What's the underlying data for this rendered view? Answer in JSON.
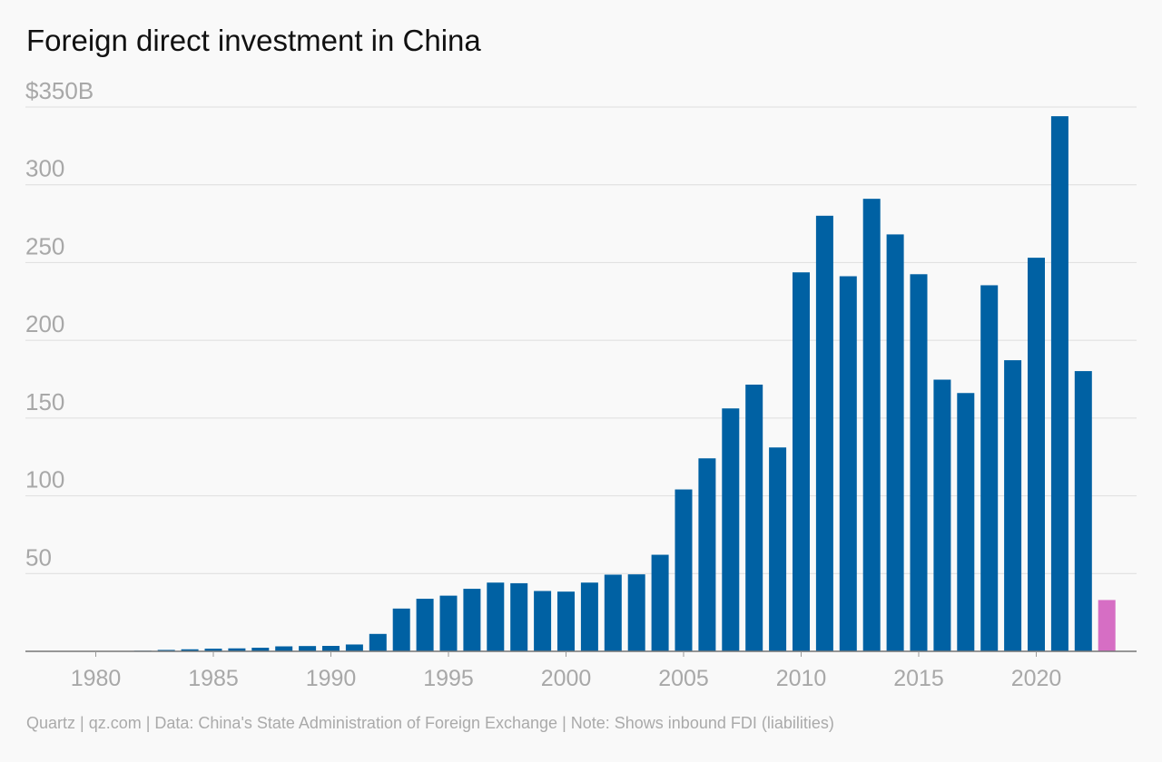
{
  "chart_data": {
    "type": "bar",
    "title": "Foreign direct investment in China",
    "ylabel_prefix": "$",
    "ylabel_suffix": "B",
    "ylim": [
      0,
      350
    ],
    "yticks": [
      50,
      100,
      150,
      200,
      250,
      300,
      350
    ],
    "ytick_labels": [
      "50",
      "100",
      "150",
      "200",
      "250",
      "300",
      "$350B"
    ],
    "xticks": [
      1980,
      1985,
      1990,
      1995,
      2000,
      2005,
      2010,
      2015,
      2020
    ],
    "xtick_labels": [
      "1980",
      "1985",
      "1990",
      "1995",
      "2000",
      "2005",
      "2010",
      "2015",
      "2020"
    ],
    "grid": true,
    "series_color": "#0061a3",
    "highlight_color": "#d66ec4",
    "x": [
      1982,
      1983,
      1984,
      1985,
      1986,
      1987,
      1988,
      1989,
      1990,
      1991,
      1992,
      1993,
      1994,
      1995,
      1996,
      1997,
      1998,
      1999,
      2000,
      2001,
      2002,
      2003,
      2004,
      2005,
      2006,
      2007,
      2008,
      2009,
      2010,
      2011,
      2012,
      2013,
      2014,
      2015,
      2016,
      2017,
      2018,
      2019,
      2020,
      2021,
      2022,
      2023
    ],
    "values": [
      0.4,
      0.9,
      1.3,
      1.7,
      1.9,
      2.3,
      3.2,
      3.4,
      3.5,
      4.4,
      11.2,
      27.5,
      33.8,
      35.8,
      40.2,
      44.2,
      43.8,
      38.8,
      38.4,
      44.2,
      49.3,
      49.5,
      62.1,
      104.1,
      124.1,
      156.2,
      171.5,
      131.1,
      243.7,
      280.1,
      241.2,
      291.0,
      268.1,
      242.5,
      174.7,
      166.1,
      235.4,
      187.2,
      253.1,
      344.1,
      180.2,
      33.0
    ],
    "highlight": [
      false,
      false,
      false,
      false,
      false,
      false,
      false,
      false,
      false,
      false,
      false,
      false,
      false,
      false,
      false,
      false,
      false,
      false,
      false,
      false,
      false,
      false,
      false,
      false,
      false,
      false,
      false,
      false,
      false,
      false,
      false,
      false,
      false,
      false,
      false,
      false,
      false,
      false,
      false,
      false,
      false,
      true
    ]
  },
  "footer": "Quartz | qz.com | Data: China's State Administration of Foreign Exchange | Note: Shows inbound FDI (liabilities)"
}
